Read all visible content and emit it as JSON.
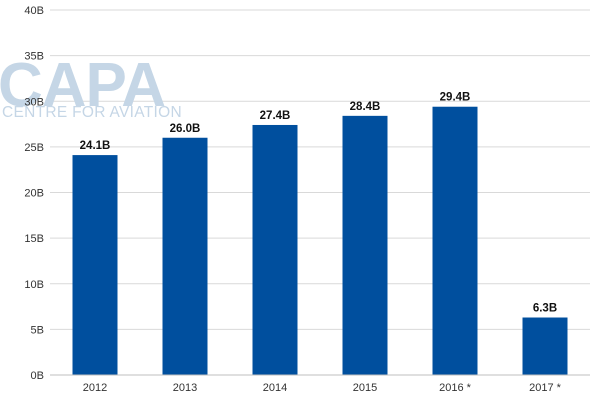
{
  "watermark": {
    "brand": "CAPA",
    "tagline": "CENTRE FOR AVIATION"
  },
  "chart_data": {
    "type": "bar",
    "categories": [
      "2012",
      "2013",
      "2014",
      "2015",
      "2016 *",
      "2017 *"
    ],
    "series": [
      {
        "values": [
          24.1,
          26.0,
          27.4,
          28.4,
          29.4,
          6.3
        ],
        "data_labels": [
          "24.1B",
          "26.0B",
          "27.4B",
          "28.4B",
          "29.4B",
          "6.3B"
        ],
        "color": "#004f9e"
      }
    ],
    "y_ticks": [
      {
        "value": 0,
        "label": "0B"
      },
      {
        "value": 5,
        "label": "5B"
      },
      {
        "value": 10,
        "label": "10B"
      },
      {
        "value": 15,
        "label": "15B"
      },
      {
        "value": 20,
        "label": "20B"
      },
      {
        "value": 25,
        "label": "25B"
      },
      {
        "value": 30,
        "label": "30B"
      },
      {
        "value": 35,
        "label": "35B"
      },
      {
        "value": 40,
        "label": "40B"
      }
    ],
    "ylim": [
      0,
      40
    ],
    "title": "",
    "xlabel": "",
    "ylabel": "",
    "grid": true,
    "gridline_color": "#d9d9d9"
  }
}
